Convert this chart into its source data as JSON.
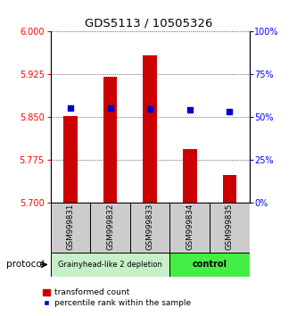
{
  "title": "GDS5113 / 10505326",
  "samples": [
    "GSM999831",
    "GSM999832",
    "GSM999833",
    "GSM999834",
    "GSM999835"
  ],
  "bar_tops": [
    5.851,
    5.92,
    5.958,
    5.793,
    5.748
  ],
  "bar_bottom": 5.7,
  "percentile_values": [
    5.865,
    5.865,
    5.864,
    5.863,
    5.86
  ],
  "ylim": [
    5.7,
    6.0
  ],
  "yticks_left": [
    5.7,
    5.775,
    5.85,
    5.925,
    6.0
  ],
  "yticks_right_vals": [
    0,
    25,
    50,
    75,
    100
  ],
  "bar_color": "#cc0000",
  "dot_color": "#0000cc",
  "group1_label": "Grainyhead-like 2 depletion",
  "group1_indices": [
    0,
    1,
    2
  ],
  "group2_label": "control",
  "group2_indices": [
    3,
    4
  ],
  "group1_bg": "#c8f0c8",
  "group2_bg": "#44ee44",
  "protocol_label": "protocol",
  "legend_bar_label": "transformed count",
  "legend_dot_label": "percentile rank within the sample",
  "bar_width": 0.35
}
